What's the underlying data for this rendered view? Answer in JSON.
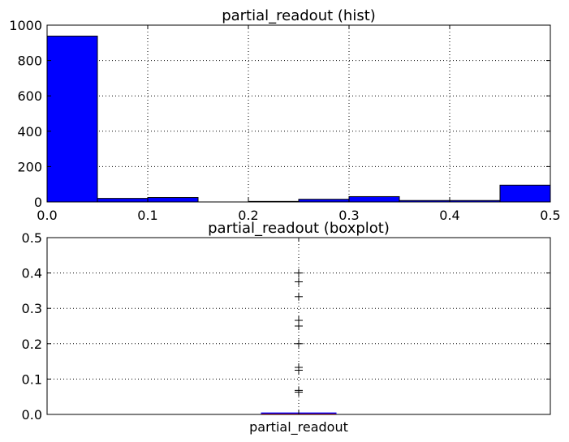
{
  "chart_data": [
    {
      "type": "bar",
      "title": "partial_readout (hist)",
      "xlabel": "",
      "ylabel": "",
      "xlim": [
        0.0,
        0.5
      ],
      "ylim": [
        0,
        1000
      ],
      "grid": true,
      "bar_color": "#0000ff",
      "x_ticks": [
        "0.0",
        "0.1",
        "0.2",
        "0.3",
        "0.4",
        "0.5"
      ],
      "y_ticks": [
        "0",
        "200",
        "400",
        "600",
        "800",
        "1000"
      ],
      "bins": [
        {
          "start": 0.0,
          "end": 0.05,
          "count": 938
        },
        {
          "start": 0.05,
          "end": 0.1,
          "count": 20
        },
        {
          "start": 0.1,
          "end": 0.15,
          "count": 25
        },
        {
          "start": 0.15,
          "end": 0.2,
          "count": 0
        },
        {
          "start": 0.2,
          "end": 0.25,
          "count": 3
        },
        {
          "start": 0.25,
          "end": 0.3,
          "count": 15
        },
        {
          "start": 0.3,
          "end": 0.35,
          "count": 30
        },
        {
          "start": 0.35,
          "end": 0.4,
          "count": 8
        },
        {
          "start": 0.4,
          "end": 0.45,
          "count": 8
        },
        {
          "start": 0.45,
          "end": 0.5,
          "count": 95
        }
      ]
    },
    {
      "type": "boxplot",
      "title": "partial_readout (boxplot)",
      "xlabel": "",
      "ylabel": "",
      "ylim": [
        0.0,
        0.5
      ],
      "grid": true,
      "categories": [
        "partial_readout"
      ],
      "y_ticks": [
        "0.0",
        "0.1",
        "0.2",
        "0.3",
        "0.4",
        "0.5"
      ],
      "box": {
        "q1": 0.0,
        "median": 0.0,
        "q3": 0.002,
        "whisker_low": 0.0,
        "whisker_high": 0.004
      },
      "box_color": "#0000ff",
      "median_color": "#ff0000",
      "outliers": [
        0.063,
        0.068,
        0.125,
        0.133,
        0.2,
        0.25,
        0.266,
        0.333,
        0.375,
        0.4
      ]
    }
  ]
}
